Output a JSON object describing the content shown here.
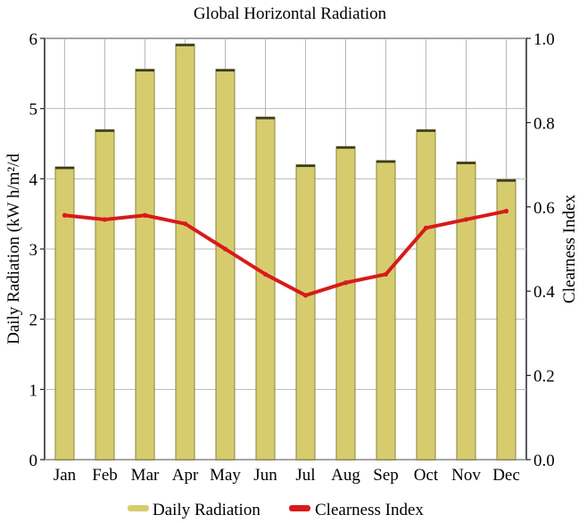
{
  "chart_data": {
    "type": "bar",
    "title": "Global Horizontal Radiation",
    "categories": [
      "Jan",
      "Feb",
      "Mar",
      "Apr",
      "May",
      "Jun",
      "Jul",
      "Aug",
      "Sep",
      "Oct",
      "Nov",
      "Dec"
    ],
    "ylabel": "Daily Radiation (kW h/m²/d",
    "y2label": "Clearness Index",
    "ylim": [
      0,
      6
    ],
    "y2lim": [
      0,
      1
    ],
    "yticks": [
      "0",
      "1",
      "2",
      "3",
      "4",
      "5",
      "6"
    ],
    "y2ticks": [
      "0.0",
      "0.2",
      "0.4",
      "0.6",
      "0.8",
      "1.0"
    ],
    "grid": true,
    "legend_position": "bottom",
    "series": [
      {
        "name": "Daily Radiation",
        "type": "bar",
        "axis": "left",
        "color": "#d6cc6e",
        "values": [
          4.17,
          4.7,
          5.56,
          5.92,
          5.56,
          4.88,
          4.2,
          4.46,
          4.26,
          4.7,
          4.24,
          3.99
        ]
      },
      {
        "name": "Clearness Index",
        "type": "line",
        "axis": "right",
        "color": "#d81a1a",
        "values": [
          0.58,
          0.57,
          0.58,
          0.56,
          0.5,
          0.44,
          0.39,
          0.42,
          0.44,
          0.55,
          0.57,
          0.59
        ]
      }
    ]
  }
}
